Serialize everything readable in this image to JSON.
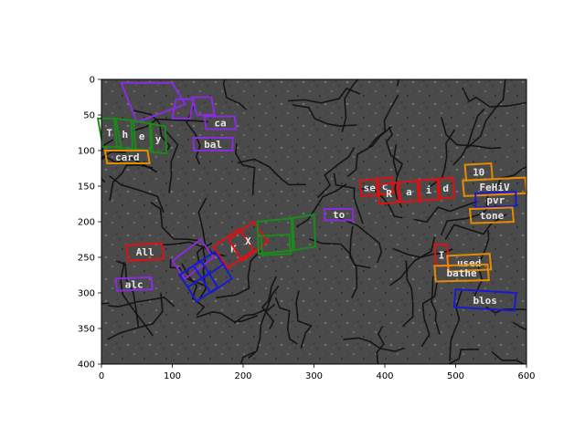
{
  "chart_data": {
    "type": "image_with_annotations",
    "title": "",
    "xlabel": "",
    "ylabel": "",
    "xlim": [
      -40,
      600
    ],
    "ylim": [
      400,
      0
    ],
    "x_ticks": [
      0,
      100,
      200,
      300,
      400,
      500,
      600
    ],
    "y_ticks": [
      0,
      50,
      100,
      150,
      200,
      250,
      300,
      350,
      400
    ],
    "image_extent": [
      0,
      600,
      400,
      0
    ],
    "background": "cracked-asphalt-photo",
    "box_colors": {
      "purple": "#8a2be2",
      "green": "#1a8a1a",
      "orange": "#e68a00",
      "red": "#e01010",
      "blue": "#1a1ad6"
    },
    "annotations": [
      {
        "color": "purple",
        "points": [
          [
            28,
            5
          ],
          [
            100,
            5
          ],
          [
            118,
            35
          ],
          [
            50,
            60
          ]
        ],
        "text": ""
      },
      {
        "color": "purple",
        "points": [
          [
            105,
            28
          ],
          [
            130,
            28
          ],
          [
            125,
            55
          ],
          [
            100,
            55
          ]
        ],
        "text": ""
      },
      {
        "color": "purple",
        "points": [
          [
            128,
            25
          ],
          [
            155,
            25
          ],
          [
            160,
            50
          ],
          [
            135,
            50
          ]
        ],
        "text": ""
      },
      {
        "color": "purple",
        "points": [
          [
            145,
            52
          ],
          [
            188,
            52
          ],
          [
            190,
            70
          ],
          [
            148,
            70
          ]
        ],
        "text": "ca"
      },
      {
        "color": "purple",
        "points": [
          [
            130,
            82
          ],
          [
            185,
            82
          ],
          [
            185,
            100
          ],
          [
            130,
            100
          ]
        ],
        "text": "bal"
      },
      {
        "color": "green",
        "points": [
          [
            -5,
            55
          ],
          [
            20,
            55
          ],
          [
            28,
            95
          ],
          [
            2,
            95
          ]
        ],
        "text": "T"
      },
      {
        "color": "green",
        "points": [
          [
            18,
            55
          ],
          [
            45,
            58
          ],
          [
            48,
            98
          ],
          [
            22,
            96
          ]
        ],
        "text": "h"
      },
      {
        "color": "green",
        "points": [
          [
            42,
            58
          ],
          [
            70,
            62
          ],
          [
            72,
            100
          ],
          [
            44,
            98
          ]
        ],
        "text": "e"
      },
      {
        "color": "green",
        "points": [
          [
            68,
            62
          ],
          [
            90,
            66
          ],
          [
            92,
            104
          ],
          [
            70,
            102
          ]
        ],
        "text": "y"
      },
      {
        "color": "orange",
        "points": [
          [
            5,
            100
          ],
          [
            65,
            100
          ],
          [
            68,
            118
          ],
          [
            8,
            118
          ]
        ],
        "text": "card"
      },
      {
        "color": "purple",
        "points": [
          [
            315,
            182
          ],
          [
            355,
            182
          ],
          [
            355,
            198
          ],
          [
            315,
            198
          ]
        ],
        "text": "to"
      },
      {
        "color": "red",
        "points": [
          [
            365,
            142
          ],
          [
            390,
            140
          ],
          [
            392,
            162
          ],
          [
            367,
            164
          ]
        ],
        "text": "se"
      },
      {
        "color": "red",
        "points": [
          [
            388,
            140
          ],
          [
            410,
            138
          ],
          [
            412,
            160
          ],
          [
            390,
            162
          ]
        ],
        "text": "c"
      },
      {
        "color": "red",
        "points": [
          [
            390,
            148
          ],
          [
            420,
            145
          ],
          [
            422,
            172
          ],
          [
            392,
            175
          ]
        ],
        "text": "R"
      },
      {
        "color": "red",
        "points": [
          [
            418,
            145
          ],
          [
            448,
            142
          ],
          [
            450,
            170
          ],
          [
            420,
            173
          ]
        ],
        "text": "a"
      },
      {
        "color": "red",
        "points": [
          [
            446,
            142
          ],
          [
            476,
            140
          ],
          [
            478,
            168
          ],
          [
            448,
            171
          ]
        ],
        "text": "i"
      },
      {
        "color": "red",
        "points": [
          [
            474,
            140
          ],
          [
            496,
            138
          ],
          [
            498,
            165
          ],
          [
            476,
            168
          ]
        ],
        "text": "d"
      },
      {
        "color": "orange",
        "points": [
          [
            513,
            120
          ],
          [
            550,
            118
          ],
          [
            552,
            140
          ],
          [
            515,
            142
          ]
        ],
        "text": "10"
      },
      {
        "color": "orange",
        "points": [
          [
            510,
            142
          ],
          [
            598,
            138
          ],
          [
            600,
            160
          ],
          [
            512,
            164
          ]
        ],
        "text": "FeHiV"
      },
      {
        "color": "blue",
        "points": [
          [
            528,
            160
          ],
          [
            585,
            158
          ],
          [
            585,
            178
          ],
          [
            528,
            180
          ]
        ],
        "text": "pvr"
      },
      {
        "color": "orange",
        "points": [
          [
            520,
            182
          ],
          [
            580,
            180
          ],
          [
            582,
            200
          ],
          [
            522,
            202
          ]
        ],
        "text": "tone"
      },
      {
        "color": "red",
        "points": [
          [
            470,
            232
          ],
          [
            488,
            232
          ],
          [
            490,
            262
          ],
          [
            472,
            262
          ]
        ],
        "text": "I"
      },
      {
        "color": "orange",
        "points": [
          [
            488,
            248
          ],
          [
            548,
            245
          ],
          [
            550,
            267
          ],
          [
            490,
            270
          ]
        ],
        "text": "used"
      },
      {
        "color": "orange",
        "points": [
          [
            470,
            262
          ],
          [
            545,
            260
          ],
          [
            547,
            282
          ],
          [
            472,
            284
          ]
        ],
        "text": "bathe"
      },
      {
        "color": "blue",
        "points": [
          [
            500,
            295
          ],
          [
            585,
            300
          ],
          [
            583,
            325
          ],
          [
            498,
            320
          ]
        ],
        "text": "blos"
      },
      {
        "color": "red",
        "points": [
          [
            35,
            233
          ],
          [
            85,
            230
          ],
          [
            88,
            252
          ],
          [
            38,
            255
          ]
        ],
        "text": "All"
      },
      {
        "color": "purple",
        "points": [
          [
            20,
            280
          ],
          [
            70,
            278
          ],
          [
            72,
            295
          ],
          [
            22,
            297
          ]
        ],
        "text": "alc"
      },
      {
        "color": "purple",
        "points": [
          [
            100,
            255
          ],
          [
            140,
            225
          ],
          [
            158,
            250
          ],
          [
            118,
            280
          ]
        ],
        "text": ""
      },
      {
        "color": "red",
        "points": [
          [
            158,
            235
          ],
          [
            195,
            210
          ],
          [
            215,
            240
          ],
          [
            178,
            265
          ]
        ],
        "text": "K"
      },
      {
        "color": "red",
        "points": [
          [
            180,
            225
          ],
          [
            215,
            200
          ],
          [
            235,
            228
          ],
          [
            198,
            255
          ]
        ],
        "text": "X"
      },
      {
        "color": "blue",
        "points": [
          [
            110,
            275
          ],
          [
            140,
            255
          ],
          [
            152,
            272
          ],
          [
            122,
            292
          ]
        ],
        "text": ""
      },
      {
        "color": "blue",
        "points": [
          [
            130,
            262
          ],
          [
            160,
            242
          ],
          [
            172,
            260
          ],
          [
            142,
            280
          ]
        ],
        "text": ""
      },
      {
        "color": "blue",
        "points": [
          [
            122,
            292
          ],
          [
            152,
            272
          ],
          [
            164,
            292
          ],
          [
            134,
            312
          ]
        ],
        "text": ""
      },
      {
        "color": "blue",
        "points": [
          [
            142,
            280
          ],
          [
            172,
            260
          ],
          [
            184,
            280
          ],
          [
            154,
            300
          ]
        ],
        "text": ""
      },
      {
        "color": "green",
        "points": [
          [
            220,
            200
          ],
          [
            270,
            195
          ],
          [
            272,
            240
          ],
          [
            222,
            245
          ]
        ],
        "text": ""
      },
      {
        "color": "green",
        "points": [
          [
            268,
            195
          ],
          [
            300,
            190
          ],
          [
            302,
            235
          ],
          [
            270,
            240
          ]
        ],
        "text": ""
      },
      {
        "color": "green",
        "points": [
          [
            225,
            220
          ],
          [
            265,
            218
          ],
          [
            267,
            245
          ],
          [
            227,
            247
          ]
        ],
        "text": ""
      }
    ]
  }
}
